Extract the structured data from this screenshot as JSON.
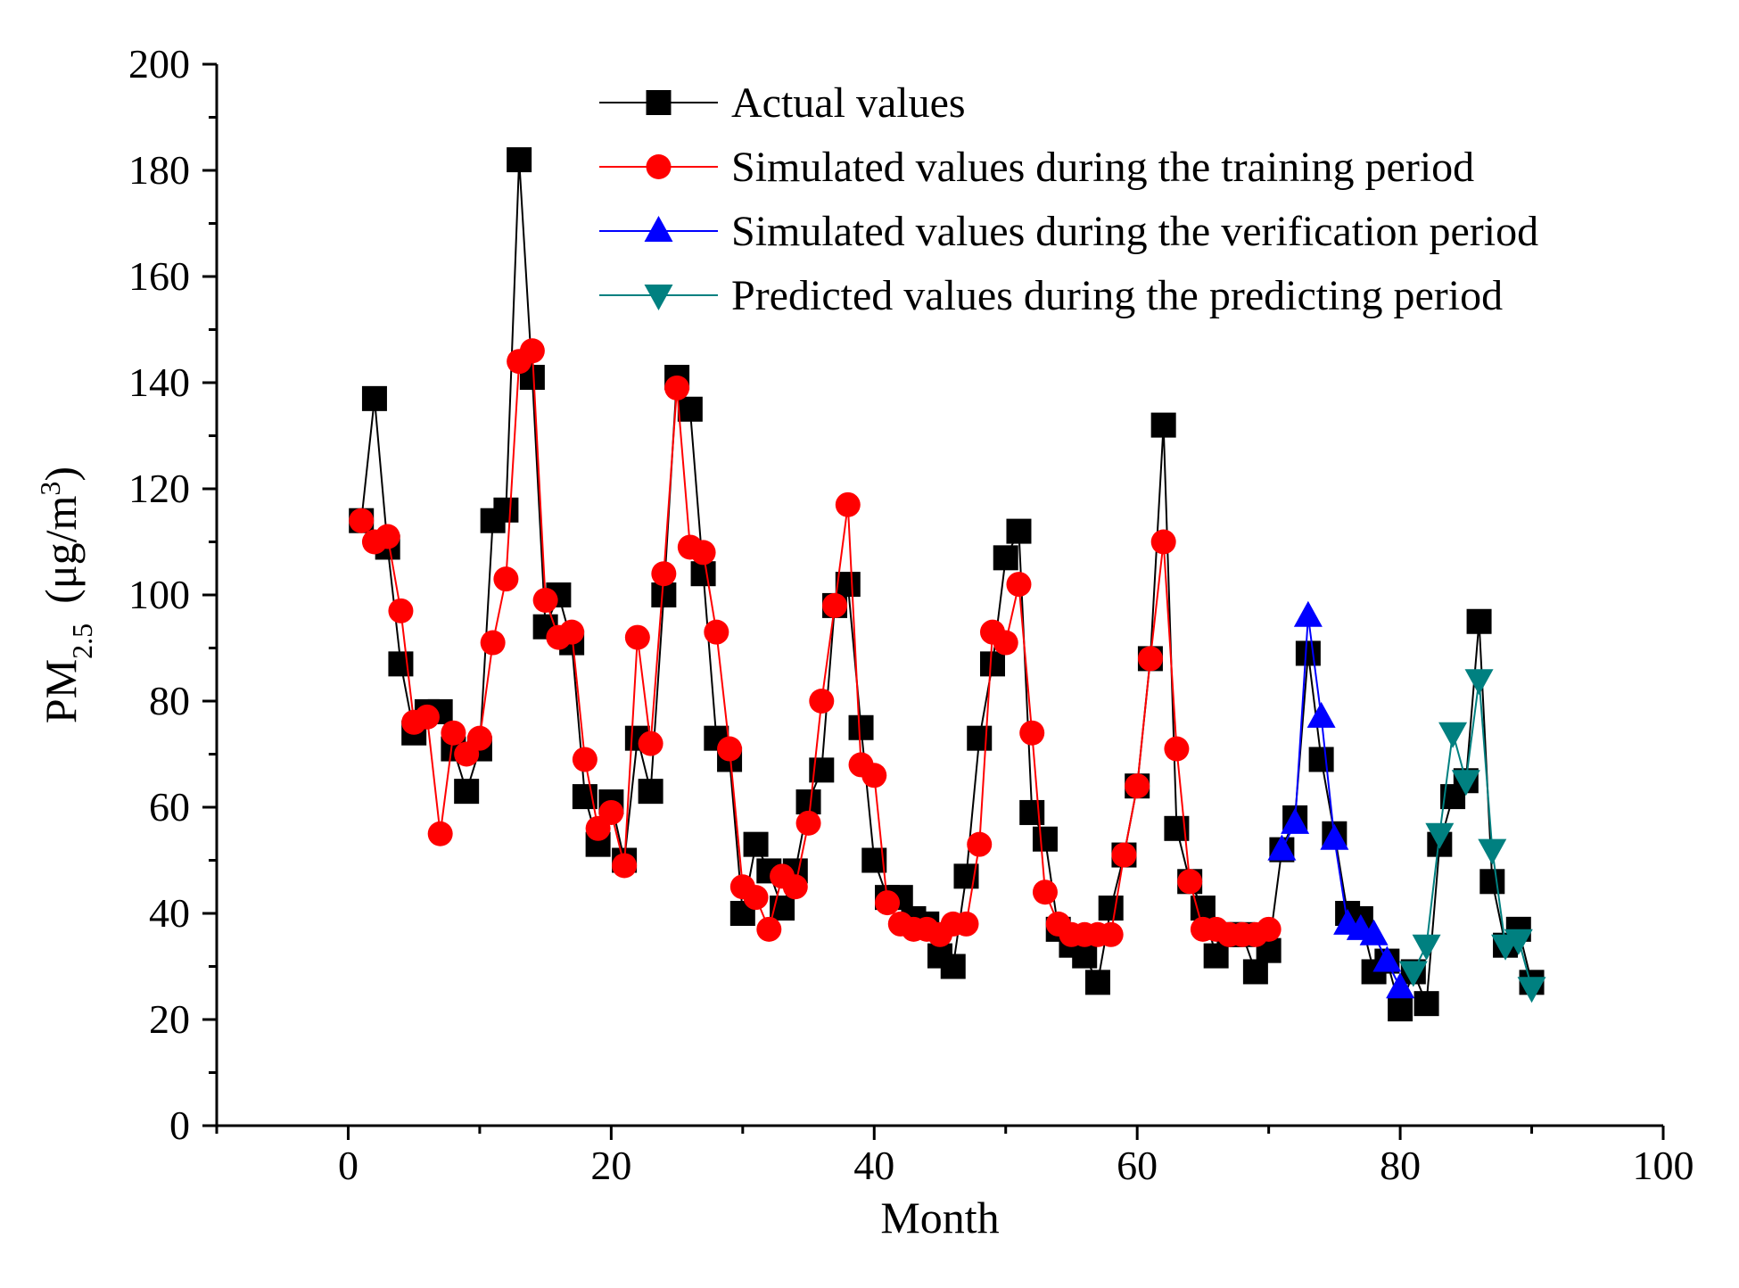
{
  "chart_data": {
    "type": "line",
    "xlabel": "Month",
    "ylabel": {
      "main": "PM",
      "sub": "2.5",
      "unit": "(μg/m",
      "sup": "3",
      "close": ")"
    },
    "xlim": [
      -10,
      100
    ],
    "ylim": [
      0,
      200
    ],
    "xticks": [
      0,
      20,
      40,
      60,
      80,
      100
    ],
    "yticks": [
      0,
      20,
      40,
      60,
      80,
      100,
      120,
      140,
      160,
      180,
      200
    ],
    "grid": false,
    "legend_position": "top-right",
    "series": [
      {
        "name": "Actual values",
        "color": "#000000",
        "marker": "square",
        "x": [
          1,
          2,
          3,
          4,
          5,
          6,
          7,
          8,
          9,
          10,
          11,
          12,
          13,
          14,
          15,
          16,
          17,
          18,
          19,
          20,
          21,
          22,
          23,
          24,
          25,
          26,
          27,
          28,
          29,
          30,
          31,
          32,
          33,
          34,
          35,
          36,
          37,
          38,
          39,
          40,
          41,
          42,
          43,
          44,
          45,
          46,
          47,
          48,
          49,
          50,
          51,
          52,
          53,
          54,
          55,
          56,
          57,
          58,
          59,
          60,
          61,
          62,
          63,
          64,
          65,
          66,
          67,
          68,
          69,
          70,
          71,
          72,
          73,
          74,
          75,
          76,
          77,
          78,
          79,
          80,
          81,
          82,
          83,
          84,
          85,
          86,
          87,
          88,
          89,
          90
        ],
        "y": [
          114,
          137,
          109,
          87,
          74,
          78,
          78,
          71,
          63,
          71,
          114,
          116,
          182,
          141,
          94,
          100,
          91,
          62,
          53,
          61,
          50,
          73,
          63,
          100,
          141,
          135,
          104,
          73,
          69,
          40,
          53,
          48,
          41,
          48,
          61,
          67,
          98,
          102,
          75,
          50,
          43,
          43,
          39,
          38,
          32,
          30,
          47,
          73,
          87,
          107,
          112,
          59,
          54,
          37,
          34,
          32,
          27,
          41,
          51,
          64,
          88,
          132,
          56,
          46,
          41,
          32,
          36,
          36,
          29,
          33,
          52,
          58,
          89,
          69,
          55,
          40,
          39,
          29,
          31,
          22,
          29,
          23,
          53,
          62,
          65,
          95,
          46,
          34,
          37,
          27
        ]
      },
      {
        "name": "Simulated values during the training period",
        "color": "#ff0000",
        "marker": "circle",
        "x": [
          1,
          2,
          3,
          4,
          5,
          6,
          7,
          8,
          9,
          10,
          11,
          12,
          13,
          14,
          15,
          16,
          17,
          18,
          19,
          20,
          21,
          22,
          23,
          24,
          25,
          26,
          27,
          28,
          29,
          30,
          31,
          32,
          33,
          34,
          35,
          36,
          37,
          38,
          39,
          40,
          41,
          42,
          43,
          44,
          45,
          46,
          47,
          48,
          49,
          50,
          51,
          52,
          53,
          54,
          55,
          56,
          57,
          58,
          59,
          60,
          61,
          62,
          63,
          64,
          65,
          66,
          67,
          68,
          69,
          70
        ],
        "y": [
          114,
          110,
          111,
          97,
          76,
          77,
          55,
          74,
          70,
          73,
          91,
          103,
          144,
          146,
          99,
          92,
          93,
          69,
          56,
          59,
          49,
          92,
          72,
          104,
          139,
          109,
          108,
          93,
          71,
          45,
          43,
          37,
          47,
          45,
          57,
          80,
          98,
          117,
          68,
          66,
          42,
          38,
          37,
          37,
          36,
          38,
          38,
          53,
          93,
          91,
          102,
          74,
          44,
          38,
          36,
          36,
          36,
          36,
          51,
          64,
          88,
          110,
          71,
          46,
          37,
          37,
          36,
          36,
          36,
          37
        ]
      },
      {
        "name": "Simulated values during the verification period",
        "color": "#0000ff",
        "marker": "triangle-up",
        "x": [
          71,
          72,
          73,
          74,
          75,
          76,
          77,
          78,
          79,
          80
        ],
        "y": [
          52,
          57,
          96,
          77,
          54,
          38,
          37,
          36,
          31,
          26
        ]
      },
      {
        "name": "Predicted  values during the predicting period",
        "color": "#008080",
        "marker": "triangle-down",
        "x": [
          81,
          82,
          83,
          84,
          85,
          86,
          87,
          88,
          89,
          90
        ],
        "y": [
          29,
          34,
          55,
          74,
          65,
          84,
          52,
          34,
          35,
          26
        ]
      }
    ]
  }
}
